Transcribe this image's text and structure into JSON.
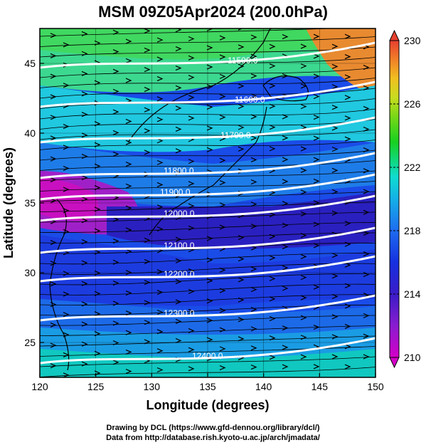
{
  "title": "MSM 09Z05Apr2024 (200.0hPa)",
  "x_axis": {
    "label": "Longitude (degrees)",
    "range": [
      120,
      150
    ],
    "ticks": [
      120,
      125,
      130,
      135,
      140,
      145,
      150
    ],
    "tick_labels": [
      "120",
      "125",
      "130",
      "135",
      "140",
      "145",
      "150"
    ]
  },
  "y_axis": {
    "label": "Latitude (degrees)",
    "range": [
      22.5,
      47.5
    ],
    "ticks": [
      25,
      30,
      35,
      40,
      45
    ],
    "tick_labels": [
      "25",
      "30",
      "35",
      "40",
      "45"
    ]
  },
  "colorbar": {
    "range": [
      210,
      230
    ],
    "tick_labels": [
      "210",
      "214",
      "218",
      "222",
      "226",
      "230"
    ],
    "tick_values": [
      210,
      214,
      218,
      222,
      226,
      230
    ],
    "colors": [
      "#d400c8",
      "#8a1cd0",
      "#3a1cc8",
      "#1630e0",
      "#1e6cf0",
      "#14b0e8",
      "#10dcd0",
      "#10d880",
      "#18d020",
      "#78d818",
      "#c8dc20",
      "#f0c020",
      "#f08028",
      "#e84030"
    ]
  },
  "contours": {
    "labels": [
      "11500.0",
      "11600.0",
      "11700.0",
      "11800.0",
      "11900.0",
      "12000.0",
      "12100.0",
      "12200.0",
      "12300.0",
      "12400.0"
    ]
  },
  "credits": {
    "line1": "Drawing by DCL (https://www.gfd-dennou.org/library/dcl/)",
    "line2": "Data from http://database.rish.kyoto-u.ac.jp/arch/jmadata/"
  }
}
